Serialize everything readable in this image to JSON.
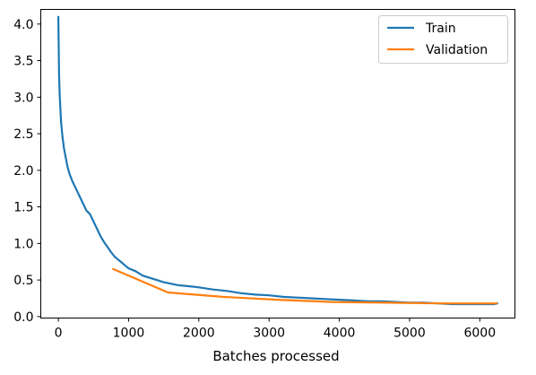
{
  "chart_data": {
    "type": "line",
    "title": "",
    "xlabel": "Batches processed",
    "ylabel": "",
    "xlim": [
      -250,
      6500
    ],
    "ylim": [
      -0.02,
      4.2
    ],
    "xticks": [
      {
        "v": 0,
        "label": "0"
      },
      {
        "v": 1000,
        "label": "1000"
      },
      {
        "v": 2000,
        "label": "2000"
      },
      {
        "v": 3000,
        "label": "3000"
      },
      {
        "v": 4000,
        "label": "4000"
      },
      {
        "v": 5000,
        "label": "5000"
      },
      {
        "v": 6000,
        "label": "6000"
      }
    ],
    "yticks": [
      {
        "v": 0.0,
        "label": "0.0"
      },
      {
        "v": 0.5,
        "label": "0.5"
      },
      {
        "v": 1.0,
        "label": "1.0"
      },
      {
        "v": 1.5,
        "label": "1.5"
      },
      {
        "v": 2.0,
        "label": "2.0"
      },
      {
        "v": 2.5,
        "label": "2.5"
      },
      {
        "v": 3.0,
        "label": "3.0"
      },
      {
        "v": 3.5,
        "label": "3.5"
      },
      {
        "v": 4.0,
        "label": "4.0"
      }
    ],
    "grid": false,
    "legend_position": "upper right",
    "series": [
      {
        "name": "Train",
        "color": "#1f77b4",
        "x": [
          0,
          10,
          20,
          40,
          60,
          80,
          100,
          130,
          160,
          200,
          250,
          300,
          350,
          400,
          450,
          500,
          550,
          600,
          650,
          700,
          750,
          800,
          850,
          900,
          950,
          1000,
          1100,
          1200,
          1300,
          1400,
          1500,
          1600,
          1700,
          1800,
          1900,
          2000,
          2200,
          2400,
          2600,
          2800,
          3000,
          3200,
          3400,
          3600,
          3800,
          4000,
          4200,
          4400,
          4600,
          4800,
          5000,
          5200,
          5400,
          5600,
          5800,
          6000,
          6200,
          6250
        ],
        "y": [
          4.1,
          3.3,
          3.0,
          2.65,
          2.45,
          2.3,
          2.2,
          2.05,
          1.95,
          1.85,
          1.75,
          1.65,
          1.55,
          1.45,
          1.4,
          1.3,
          1.2,
          1.1,
          1.02,
          0.95,
          0.88,
          0.82,
          0.78,
          0.74,
          0.7,
          0.66,
          0.62,
          0.56,
          0.53,
          0.5,
          0.47,
          0.45,
          0.43,
          0.42,
          0.41,
          0.4,
          0.37,
          0.35,
          0.32,
          0.3,
          0.29,
          0.27,
          0.26,
          0.25,
          0.24,
          0.23,
          0.22,
          0.21,
          0.21,
          0.2,
          0.19,
          0.19,
          0.18,
          0.17,
          0.17,
          0.17,
          0.17,
          0.18
        ]
      },
      {
        "name": "Validation",
        "color": "#ff7f0e",
        "x": [
          780,
          1560,
          2340,
          3120,
          3900,
          4680,
          5460,
          6240
        ],
        "y": [
          0.65,
          0.33,
          0.27,
          0.23,
          0.2,
          0.19,
          0.18,
          0.18
        ]
      }
    ]
  }
}
